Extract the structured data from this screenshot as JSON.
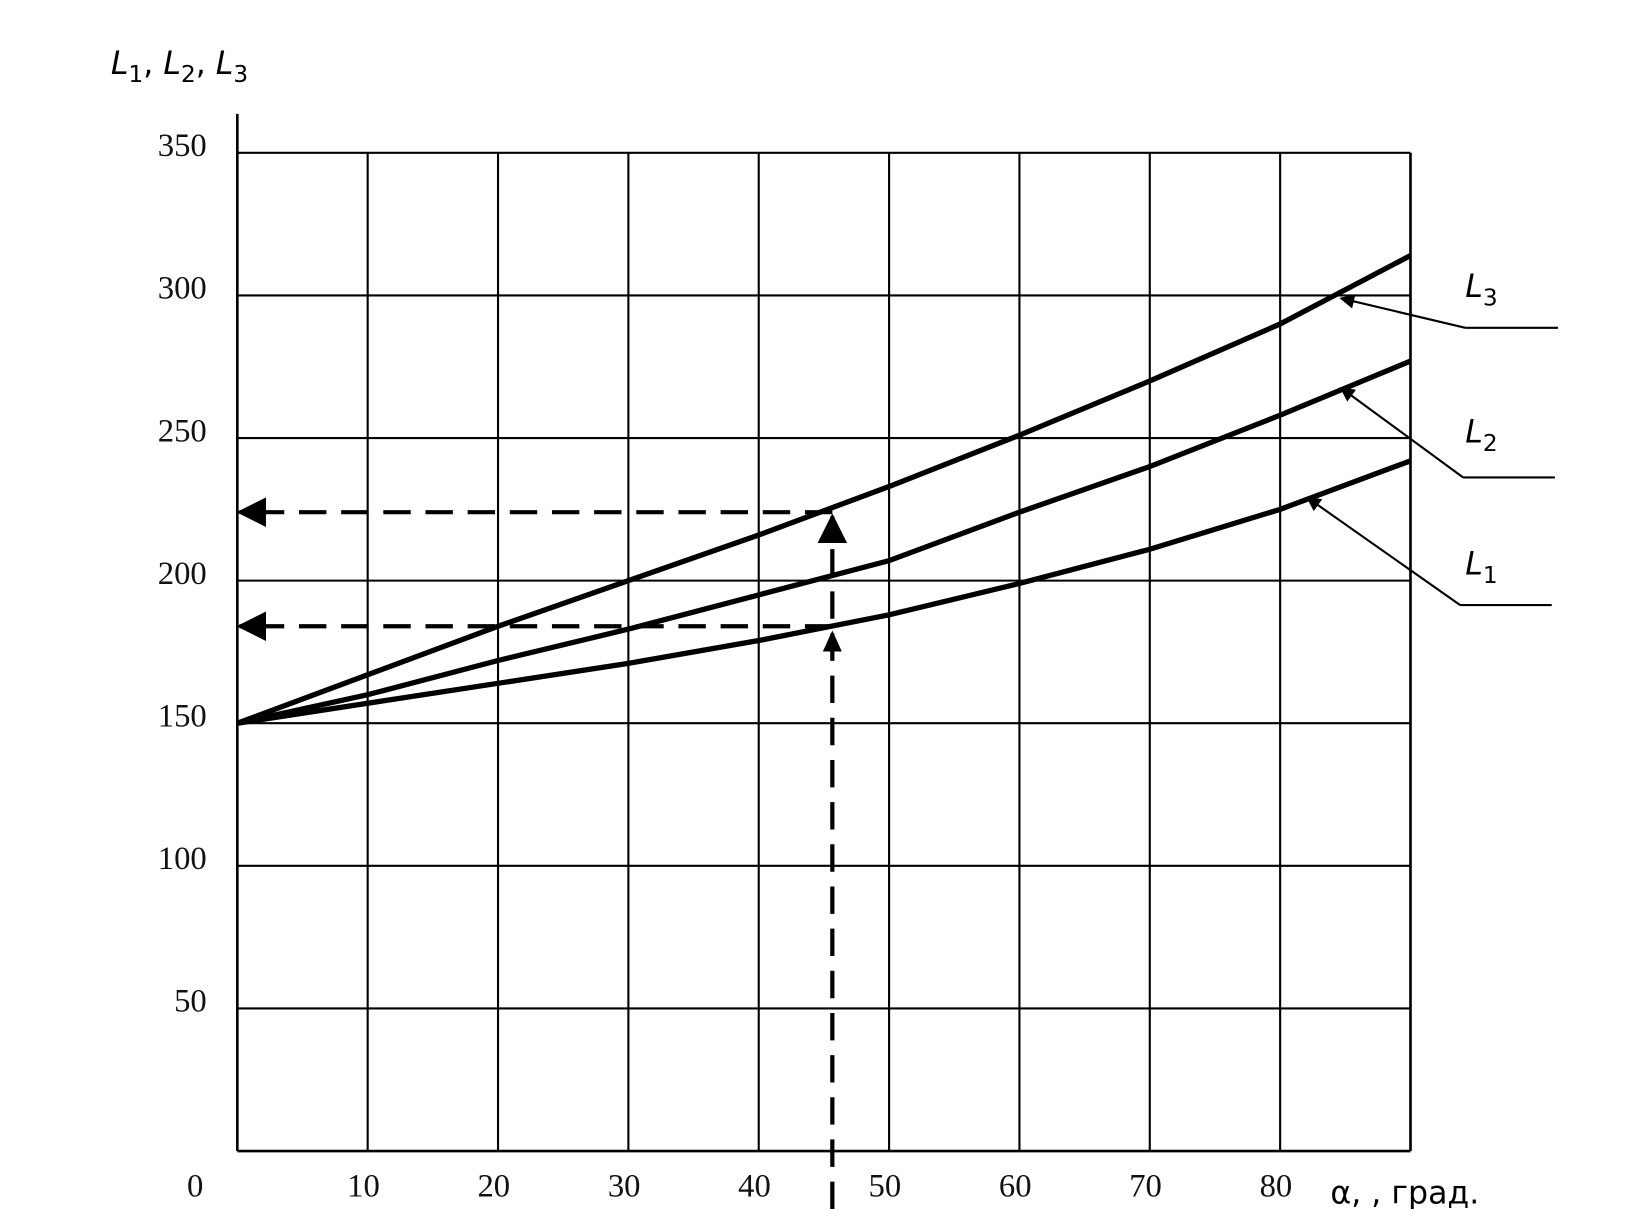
{
  "chart_data": {
    "type": "line",
    "y_label": "L1, L2, L3",
    "x_label": "α, , град.",
    "x": [
      0,
      10,
      20,
      30,
      40,
      50,
      60,
      70,
      80,
      90
    ],
    "series": [
      {
        "name": "L1",
        "color": "#000000",
        "values": [
          150,
          157,
          164,
          171,
          179,
          188,
          199,
          211,
          225,
          242
        ]
      },
      {
        "name": "L2",
        "color": "#000000",
        "values": [
          150,
          160,
          172,
          183,
          195,
          207,
          224,
          240,
          258,
          277
        ]
      },
      {
        "name": "L3",
        "color": "#000000",
        "values": [
          150,
          167,
          184,
          200,
          216,
          233,
          251,
          270,
          290,
          314
        ]
      }
    ],
    "xlim": [
      0,
      90
    ],
    "ylim": [
      0,
      350
    ],
    "xticks": [
      0,
      10,
      20,
      30,
      40,
      50,
      60,
      70,
      80
    ],
    "yticks": [
      50,
      100,
      150,
      200,
      250,
      300,
      350
    ],
    "grid": true,
    "reference_lines": {
      "x": 45,
      "y": [
        224,
        184
      ]
    }
  }
}
